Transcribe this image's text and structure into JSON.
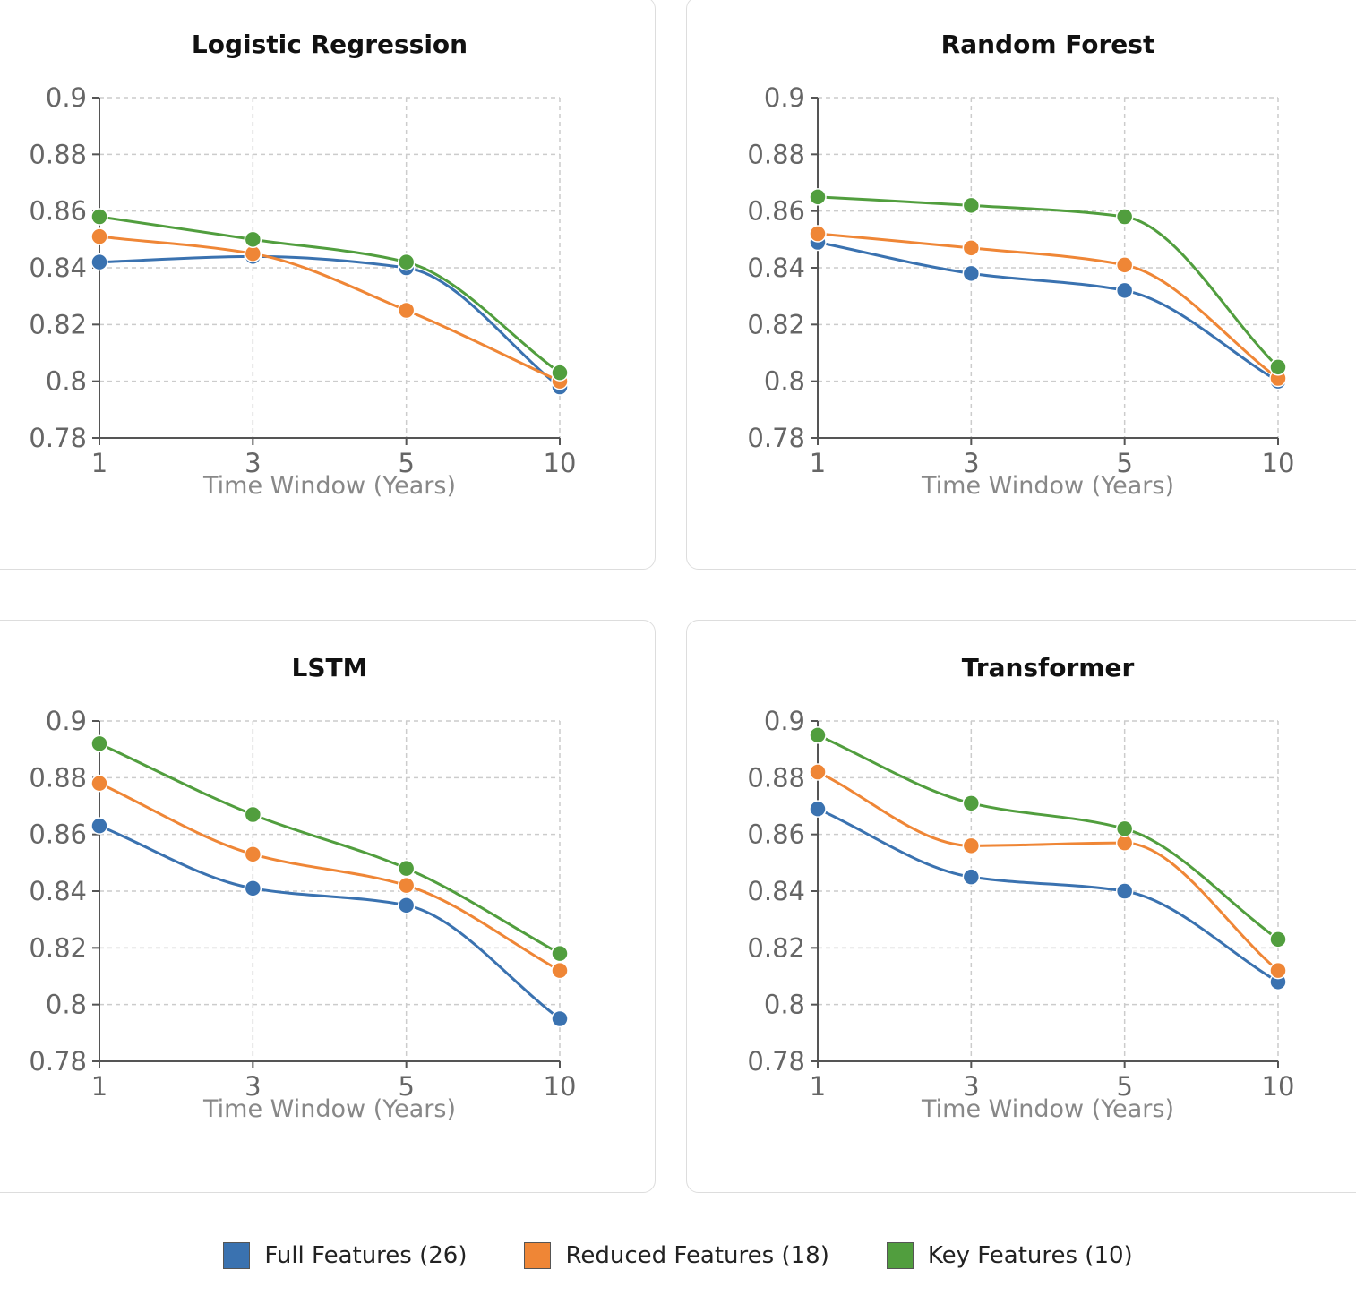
{
  "chart_data": [
    {
      "type": "line",
      "title": "Logistic Regression",
      "xlabel": "Time Window (Years)",
      "ylabel": "",
      "x": [
        1,
        3,
        5,
        10
      ],
      "x_tick_labels": [
        "1",
        "3",
        "5",
        "10"
      ],
      "ylim": [
        0.78,
        0.9
      ],
      "y_tick_labels": [
        "0.78",
        "0.8",
        "0.82",
        "0.84",
        "0.86",
        "0.88",
        "0.9"
      ],
      "grid": true,
      "series": [
        {
          "name": "Full Features (26)",
          "values": [
            0.842,
            0.844,
            0.84,
            0.798
          ]
        },
        {
          "name": "Reduced Features (18)",
          "values": [
            0.851,
            0.845,
            0.825,
            0.8
          ]
        },
        {
          "name": "Key Features (10)",
          "values": [
            0.858,
            0.85,
            0.842,
            0.803
          ]
        }
      ]
    },
    {
      "type": "line",
      "title": "Random Forest",
      "xlabel": "Time Window (Years)",
      "ylabel": "",
      "x": [
        1,
        3,
        5,
        10
      ],
      "x_tick_labels": [
        "1",
        "3",
        "5",
        "10"
      ],
      "ylim": [
        0.78,
        0.9
      ],
      "y_tick_labels": [
        "0.78",
        "0.8",
        "0.82",
        "0.84",
        "0.86",
        "0.88",
        "0.9"
      ],
      "grid": true,
      "series": [
        {
          "name": "Full Features (26)",
          "values": [
            0.849,
            0.838,
            0.832,
            0.8
          ]
        },
        {
          "name": "Reduced Features (18)",
          "values": [
            0.852,
            0.847,
            0.841,
            0.801
          ]
        },
        {
          "name": "Key Features (10)",
          "values": [
            0.865,
            0.862,
            0.858,
            0.805
          ]
        }
      ]
    },
    {
      "type": "line",
      "title": "LSTM",
      "xlabel": "Time Window (Years)",
      "ylabel": "",
      "x": [
        1,
        3,
        5,
        10
      ],
      "x_tick_labels": [
        "1",
        "3",
        "5",
        "10"
      ],
      "ylim": [
        0.78,
        0.9
      ],
      "y_tick_labels": [
        "0.78",
        "0.8",
        "0.82",
        "0.84",
        "0.86",
        "0.88",
        "0.9"
      ],
      "grid": true,
      "series": [
        {
          "name": "Full Features (26)",
          "values": [
            0.863,
            0.841,
            0.835,
            0.795
          ]
        },
        {
          "name": "Reduced Features (18)",
          "values": [
            0.878,
            0.853,
            0.842,
            0.812
          ]
        },
        {
          "name": "Key Features (10)",
          "values": [
            0.892,
            0.867,
            0.848,
            0.818
          ]
        }
      ]
    },
    {
      "type": "line",
      "title": "Transformer",
      "xlabel": "Time Window (Years)",
      "ylabel": "",
      "x": [
        1,
        3,
        5,
        10
      ],
      "x_tick_labels": [
        "1",
        "3",
        "5",
        "10"
      ],
      "ylim": [
        0.78,
        0.9
      ],
      "y_tick_labels": [
        "0.78",
        "0.8",
        "0.82",
        "0.84",
        "0.86",
        "0.88",
        "0.9"
      ],
      "grid": true,
      "series": [
        {
          "name": "Full Features (26)",
          "values": [
            0.869,
            0.845,
            0.84,
            0.808
          ]
        },
        {
          "name": "Reduced Features (18)",
          "values": [
            0.882,
            0.856,
            0.857,
            0.812
          ]
        },
        {
          "name": "Key Features (10)",
          "values": [
            0.895,
            0.871,
            0.862,
            0.823
          ]
        }
      ]
    }
  ],
  "legend": {
    "placement": "bottom",
    "items": [
      {
        "label": "Full Features (26)",
        "color": "#3a72b0"
      },
      {
        "label": "Reduced Features (18)",
        "color": "#ef8636"
      },
      {
        "label": "Key Features (10)",
        "color": "#519e3e"
      }
    ]
  }
}
